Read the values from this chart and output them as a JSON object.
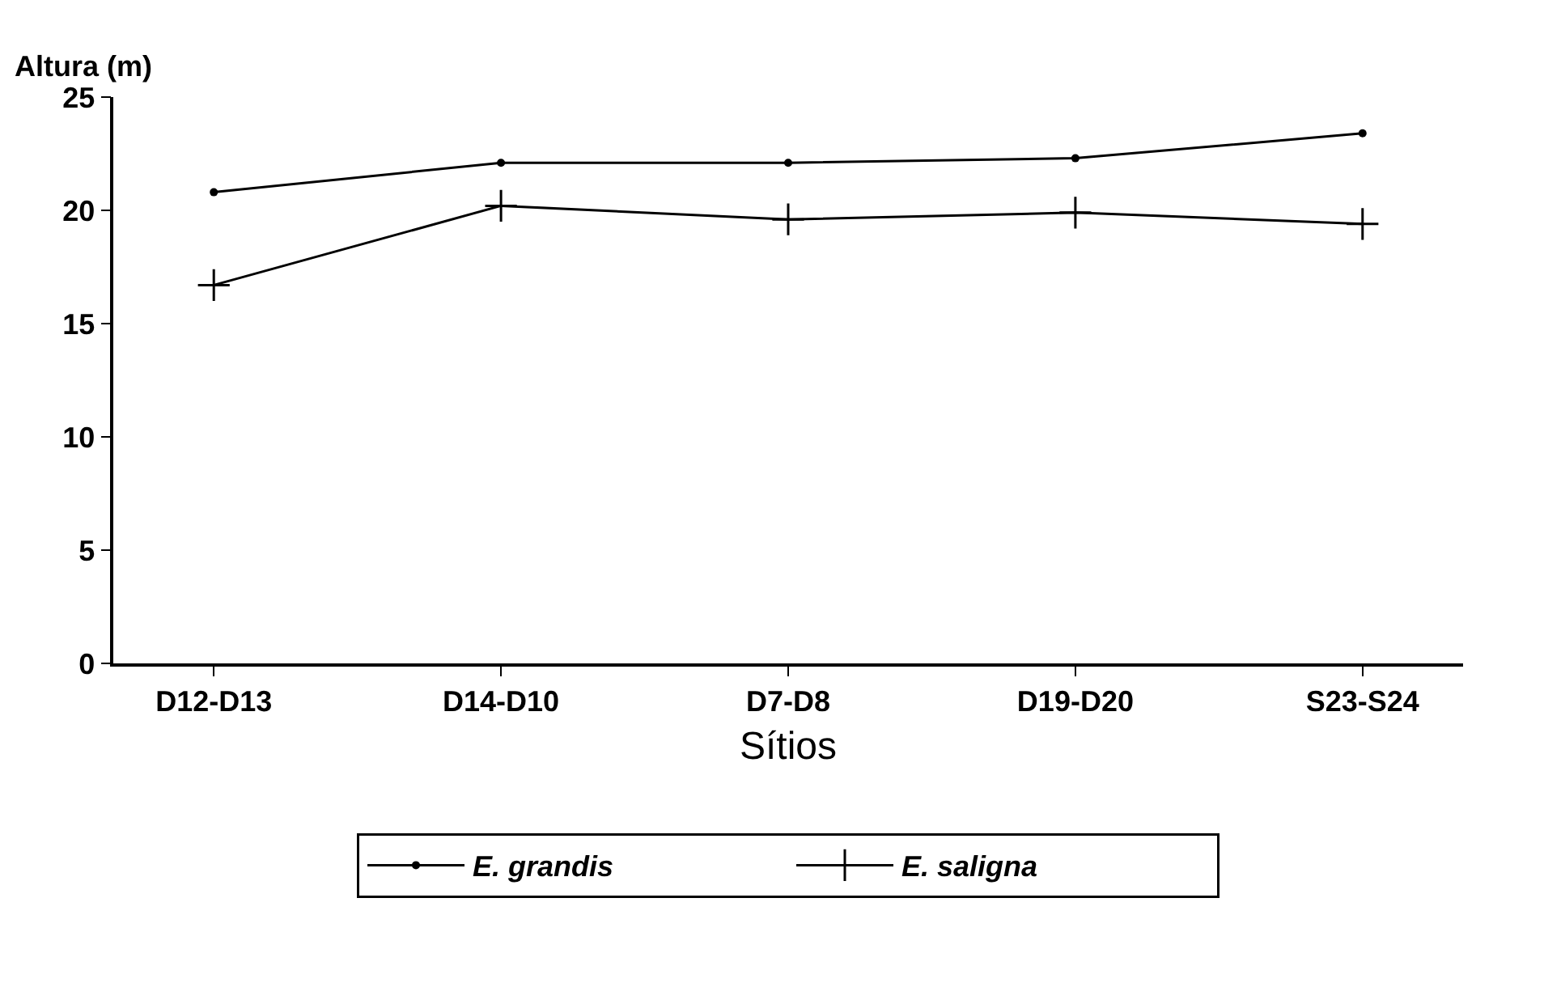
{
  "chart_data": {
    "type": "line",
    "ylabel": "Altura (m)",
    "xlabel": "Sítios",
    "categories": [
      "D12-D13",
      "D14-D10",
      "D7-D8",
      "D19-D20",
      "S23-S24"
    ],
    "series": [
      {
        "name": "E. grandis",
        "color": "#000000",
        "marker": "circle",
        "values": [
          20.8,
          22.1,
          22.1,
          22.3,
          23.4
        ]
      },
      {
        "name": "E. saligna",
        "color": "#000000",
        "marker": "cross",
        "values": [
          16.7,
          20.2,
          19.6,
          19.9,
          19.4
        ]
      }
    ],
    "ylim": [
      0,
      25
    ],
    "yticks": [
      0,
      5,
      10,
      15,
      20,
      25
    ],
    "grid": false,
    "legend": "bottom",
    "line_style": "solid"
  }
}
